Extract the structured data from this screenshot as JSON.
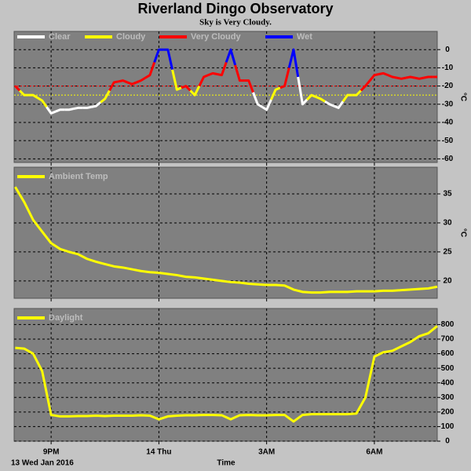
{
  "title": "Riverland Dingo Observatory",
  "subtitle": "Sky is Very Cloudy.",
  "x_label": "Time",
  "date_label": "13 Wed Jan 2016",
  "chart_data": [
    {
      "type": "sky",
      "y_label": "°C",
      "legend": [
        {
          "name": "Clear",
          "color": "#ffffff"
        },
        {
          "name": "Cloudy",
          "color": "#ffff00"
        },
        {
          "name": "Very Cloudy",
          "color": "#ff0000"
        },
        {
          "name": "Wet",
          "color": "#0000ff"
        }
      ],
      "thresholds": [
        {
          "value": -20,
          "color": "#ff0000"
        },
        {
          "value": -25,
          "color": "#ffff00"
        }
      ],
      "x": [
        20,
        20.25,
        20.5,
        20.75,
        21,
        21.25,
        21.5,
        21.75,
        22,
        22.25,
        22.5,
        22.75,
        23,
        23.25,
        23.5,
        23.75,
        24,
        24.25,
        24.5,
        24.75,
        25,
        25.25,
        25.5,
        25.75,
        26,
        26.25,
        26.5,
        26.75,
        27,
        27.25,
        27.5,
        27.75,
        28,
        28.25,
        28.5,
        28.75,
        29,
        29.25,
        29.5,
        29.75,
        30,
        30.25,
        30.5,
        30.75,
        31,
        31.25,
        31.5,
        31.75
      ],
      "values": [
        -20,
        -25,
        -25,
        -28,
        -35,
        -33,
        -33,
        -32,
        -32,
        -31,
        -27,
        -18,
        -17,
        -19,
        -17,
        -14,
        0,
        0,
        -22,
        -20,
        -25,
        -15,
        -13,
        -14,
        0,
        -17,
        -17,
        -30,
        -33,
        -22,
        -20,
        0,
        -30,
        -25,
        -27,
        -30,
        -32,
        -25,
        -25,
        -20,
        -14,
        -13,
        -15,
        -16,
        -15,
        -16,
        -15,
        -15
      ],
      "colors": [
        "#ff0000",
        "#ffff00",
        "#ffff00",
        "#ffff00",
        "#ffffff",
        "#ffffff",
        "#ffffff",
        "#ffffff",
        "#ffffff",
        "#ffffff",
        "#ffff00",
        "#ff0000",
        "#ff0000",
        "#ff0000",
        "#ff0000",
        "#ff0000",
        "#0000ff",
        "#0000ff",
        "#ffff00",
        "#ff0000",
        "#ffff00",
        "#ff0000",
        "#ff0000",
        "#ff0000",
        "#0000ff",
        "#ff0000",
        "#ff0000",
        "#ffffff",
        "#ffffff",
        "#ffff00",
        "#ff0000",
        "#0000ff",
        "#ffffff",
        "#ffff00",
        "#ffff00",
        "#ffffff",
        "#ffffff",
        "#ffff00",
        "#ffff00",
        "#ff0000",
        "#ff0000",
        "#ff0000",
        "#ff0000",
        "#ff0000",
        "#ff0000",
        "#ff0000",
        "#ff0000",
        "#ff0000"
      ],
      "xlim": [
        19.97,
        31.75
      ],
      "xticks": [
        21,
        24,
        27,
        30
      ],
      "ylim": [
        -62,
        10
      ],
      "yticks": [
        0,
        -10,
        -20,
        -30,
        -40,
        -50,
        -60
      ],
      "grid": true
    },
    {
      "type": "line",
      "y_label": "°C",
      "series": [
        {
          "name": "Ambient Temp",
          "color": "#ffff00",
          "values": [
            36.2,
            33.6,
            30.5,
            28.5,
            26.5,
            25.5,
            25,
            24.6,
            23.8,
            23.3,
            22.9,
            22.5,
            22.3,
            22,
            21.7,
            21.5,
            21.4,
            21.2,
            21,
            20.7,
            20.6,
            20.4,
            20.2,
            20.0,
            19.8,
            19.7,
            19.5,
            19.4,
            19.3,
            19.3,
            19.2,
            18.5,
            18.1,
            18,
            18,
            18.1,
            18.1,
            18.1,
            18.2,
            18.2,
            18.2,
            18.3,
            18.3,
            18.4,
            18.5,
            18.6,
            18.7,
            19.0
          ]
        }
      ],
      "x": [
        20,
        20.25,
        20.5,
        20.75,
        21,
        21.25,
        21.5,
        21.75,
        22,
        22.25,
        22.5,
        22.75,
        23,
        23.25,
        23.5,
        23.75,
        24,
        24.25,
        24.5,
        24.75,
        25,
        25.25,
        25.5,
        25.75,
        26,
        26.25,
        26.5,
        26.75,
        27,
        27.25,
        27.5,
        27.75,
        28,
        28.25,
        28.5,
        28.75,
        29,
        29.25,
        29.5,
        29.75,
        30,
        30.25,
        30.5,
        30.75,
        31,
        31.25,
        31.5,
        31.75
      ],
      "xlim": [
        19.97,
        31.75
      ],
      "xticks": [
        21,
        24,
        27,
        30
      ],
      "ylim": [
        17,
        39.6
      ],
      "yticks": [
        20,
        25,
        30,
        35
      ],
      "grid": true
    },
    {
      "type": "line",
      "series": [
        {
          "name": "Daylight",
          "color": "#ffff00",
          "values": [
            640,
            635,
            600,
            480,
            180,
            170,
            170,
            172,
            172,
            175,
            172,
            175,
            175,
            175,
            178,
            175,
            150,
            170,
            175,
            178,
            178,
            180,
            180,
            178,
            150,
            178,
            180,
            178,
            178,
            180,
            180,
            135,
            180,
            185,
            185,
            185,
            185,
            185,
            190,
            300,
            580,
            610,
            620,
            650,
            680,
            720,
            740,
            790
          ]
        }
      ],
      "x": [
        20,
        20.25,
        20.5,
        20.75,
        21,
        21.25,
        21.5,
        21.75,
        22,
        22.25,
        22.5,
        22.75,
        23,
        23.25,
        23.5,
        23.75,
        24,
        24.25,
        24.5,
        24.75,
        25,
        25.25,
        25.5,
        25.75,
        26,
        26.25,
        26.5,
        26.75,
        27,
        27.25,
        27.5,
        27.75,
        28,
        28.25,
        28.5,
        28.75,
        29,
        29.25,
        29.5,
        29.75,
        30,
        30.25,
        30.5,
        30.75,
        31,
        31.25,
        31.5,
        31.75
      ],
      "xlim": [
        19.97,
        31.75
      ],
      "xticks": [
        {
          "value": 21,
          "label": "9PM"
        },
        {
          "value": 24,
          "label": "14 Thu"
        },
        {
          "value": 27,
          "label": "3AM"
        },
        {
          "value": 30,
          "label": "6AM"
        }
      ],
      "ylim": [
        0,
        910
      ],
      "yticks": [
        0,
        100,
        200,
        300,
        400,
        500,
        600,
        700,
        800
      ],
      "grid": true
    }
  ]
}
